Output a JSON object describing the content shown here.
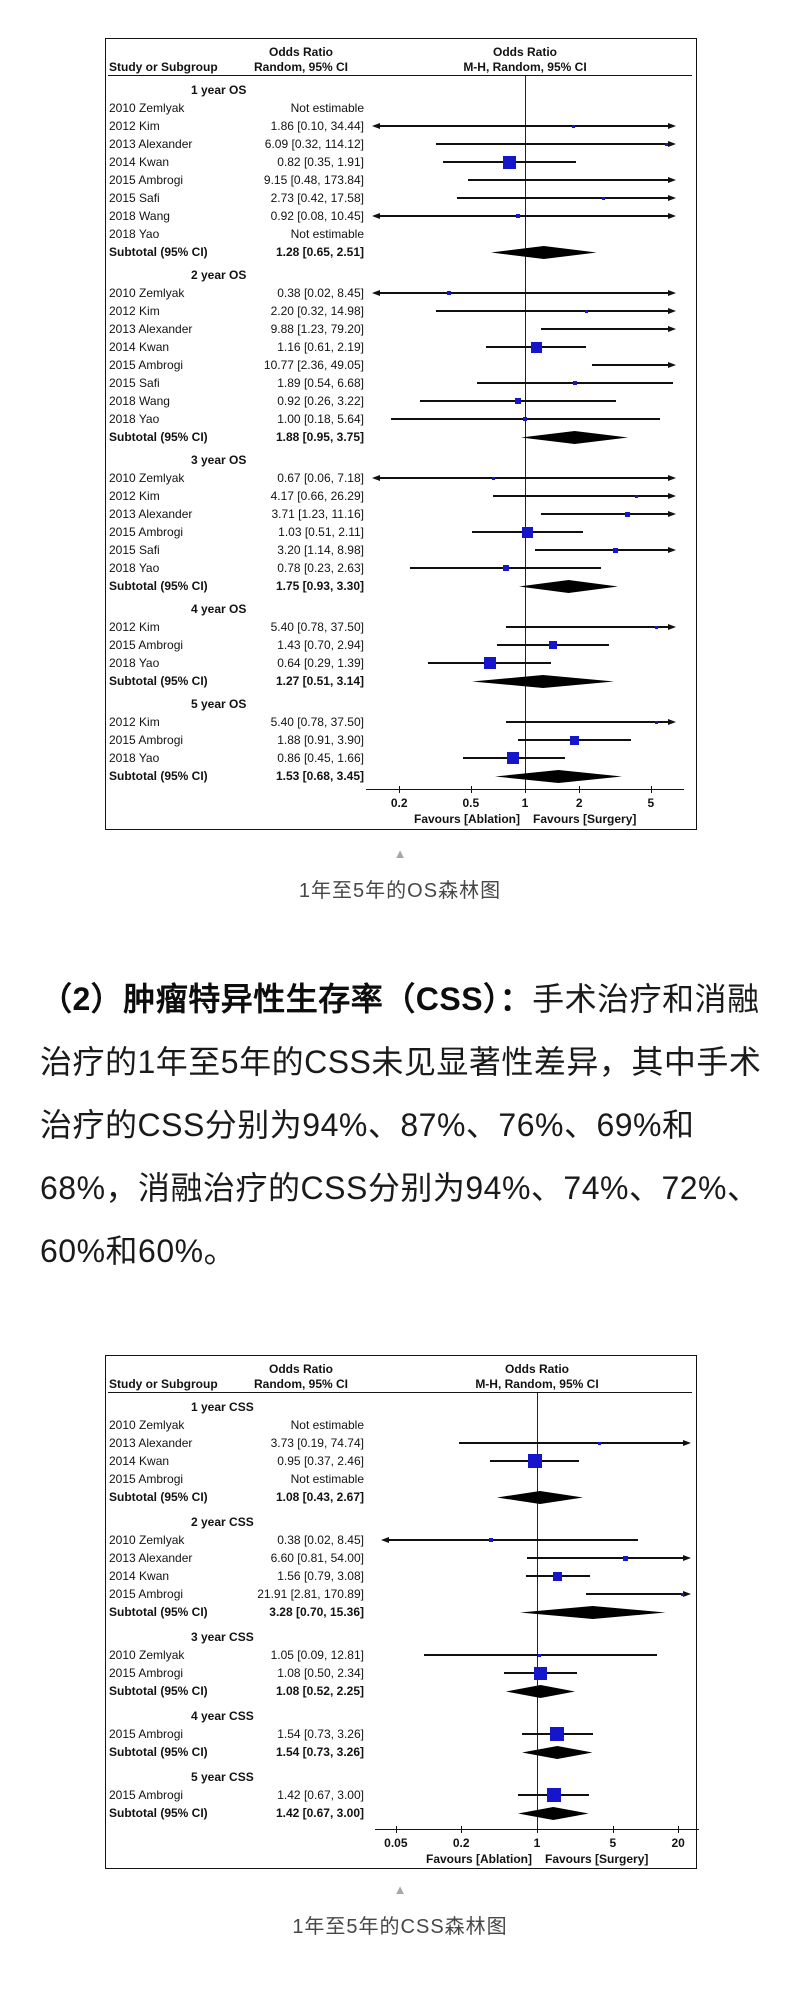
{
  "page": {
    "background": "#ffffff"
  },
  "colors": {
    "marker_blue": "#1515cc",
    "diamond_black": "#000000",
    "line_black": "#101010",
    "caption_gray": "#474747",
    "triangle_gray": "#a8a8a8"
  },
  "figure1": {
    "caption": "1年至5年的OS森林图",
    "triangle_icon": "▲"
  },
  "figure2": {
    "caption": "1年至5年的CSS森林图",
    "triangle_icon": "▲"
  },
  "paragraph": {
    "lead": "（2）肿瘤特异性生存率（CSS）：",
    "body": "手术治疗和消融治疗的1年至5年的CSS未见显著性差异，其中手术治疗的CSS分别为94%、87%、76%、69%和68%，消融治疗的CSS分别为94%、74%、72%、60%和60%。"
  },
  "chart_data": [
    {
      "type": "forest",
      "title": "OS forest plot (1 to 5 year)",
      "scale": "log",
      "col_headers": {
        "study": "Study or Subgroup",
        "or_line1": "Odds Ratio",
        "or_line2": "Random, 95% CI",
        "graph_line1": "Odds Ratio",
        "graph_line2": "M-H, Random, 95% CI"
      },
      "axis_ticks": [
        "0.2",
        "0.5",
        "1",
        "2",
        "5"
      ],
      "favours_left": "Favours [Ablation]",
      "favours_right": "Favours [Surgery]",
      "groups": [
        {
          "label": "1 year OS",
          "rows": [
            {
              "study": "2010 Zemlyak",
              "ci_text": "Not estimable"
            },
            {
              "study": "2012 Kim",
              "ci_text": "1.86 [0.10, 34.44]",
              "or": 1.86,
              "lo": 0.1,
              "hi": 34.44,
              "marker": 3
            },
            {
              "study": "2013 Alexander",
              "ci_text": "6.09 [0.32, 114.12]",
              "or": 6.09,
              "lo": 0.32,
              "hi": 114.12,
              "marker": 3
            },
            {
              "study": "2014 Kwan",
              "ci_text": "0.82 [0.35, 1.91]",
              "or": 0.82,
              "lo": 0.35,
              "hi": 1.91,
              "marker": 13
            },
            {
              "study": "2015 Ambrogi",
              "ci_text": "9.15 [0.48, 173.84]",
              "or": 9.15,
              "lo": 0.48,
              "hi": 173.84,
              "marker": 0
            },
            {
              "study": "2015 Safi",
              "ci_text": "2.73 [0.42, 17.58]",
              "or": 2.73,
              "lo": 0.42,
              "hi": 17.58,
              "marker": 3
            },
            {
              "study": "2018 Wang",
              "ci_text": "0.92 [0.08, 10.45]",
              "or": 0.92,
              "lo": 0.08,
              "hi": 10.45,
              "marker": 4
            },
            {
              "study": "2018 Yao",
              "ci_text": "Not estimable"
            }
          ],
          "subtotal": {
            "label": "Subtotal (95% CI)",
            "ci_text": "1.28 [0.65, 2.51]",
            "or": 1.28,
            "lo": 0.65,
            "hi": 2.51
          }
        },
        {
          "label": "2 year OS",
          "rows": [
            {
              "study": "2010 Zemlyak",
              "ci_text": "0.38 [0.02, 8.45]",
              "or": 0.38,
              "lo": 0.02,
              "hi": 8.45,
              "marker": 4
            },
            {
              "study": "2012 Kim",
              "ci_text": "2.20 [0.32, 14.98]",
              "or": 2.2,
              "lo": 0.32,
              "hi": 14.98,
              "marker": 3
            },
            {
              "study": "2013 Alexander",
              "ci_text": "9.88 [1.23, 79.20]",
              "or": 9.88,
              "lo": 1.23,
              "hi": 79.2,
              "marker": 0
            },
            {
              "study": "2014 Kwan",
              "ci_text": "1.16 [0.61, 2.19]",
              "or": 1.16,
              "lo": 0.61,
              "hi": 2.19,
              "marker": 11
            },
            {
              "study": "2015 Ambrogi",
              "ci_text": "10.77 [2.36, 49.05]",
              "or": 10.77,
              "lo": 2.36,
              "hi": 49.05,
              "marker": 0
            },
            {
              "study": "2015 Safi",
              "ci_text": "1.89 [0.54, 6.68]",
              "or": 1.89,
              "lo": 0.54,
              "hi": 6.68,
              "marker": 4
            },
            {
              "study": "2018 Wang",
              "ci_text": "0.92 [0.26, 3.22]",
              "or": 0.92,
              "lo": 0.26,
              "hi": 3.22,
              "marker": 6
            },
            {
              "study": "2018 Yao",
              "ci_text": "1.00 [0.18, 5.64]",
              "or": 1.0,
              "lo": 0.18,
              "hi": 5.64,
              "marker": 4
            }
          ],
          "subtotal": {
            "label": "Subtotal (95% CI)",
            "ci_text": "1.88 [0.95, 3.75]",
            "or": 1.88,
            "lo": 0.95,
            "hi": 3.75
          }
        },
        {
          "label": "3 year OS",
          "rows": [
            {
              "study": "2010 Zemlyak",
              "ci_text": "0.67 [0.06, 7.18]",
              "or": 0.67,
              "lo": 0.06,
              "hi": 7.18,
              "marker": 3
            },
            {
              "study": "2012 Kim",
              "ci_text": "4.17 [0.66, 26.29]",
              "or": 4.17,
              "lo": 0.66,
              "hi": 26.29,
              "marker": 3
            },
            {
              "study": "2013 Alexander",
              "ci_text": "3.71 [1.23, 11.16]",
              "or": 3.71,
              "lo": 1.23,
              "hi": 11.16,
              "marker": 5
            },
            {
              "study": "2015 Ambrogi",
              "ci_text": "1.03 [0.51, 2.11]",
              "or": 1.03,
              "lo": 0.51,
              "hi": 2.11,
              "marker": 11
            },
            {
              "study": "2015 Safi",
              "ci_text": "3.20 [1.14, 8.98]",
              "or": 3.2,
              "lo": 1.14,
              "hi": 8.98,
              "marker": 5
            },
            {
              "study": "2018 Yao",
              "ci_text": "0.78 [0.23, 2.63]",
              "or": 0.78,
              "lo": 0.23,
              "hi": 2.63,
              "marker": 6
            }
          ],
          "subtotal": {
            "label": "Subtotal (95% CI)",
            "ci_text": "1.75 [0.93, 3.30]",
            "or": 1.75,
            "lo": 0.93,
            "hi": 3.3
          }
        },
        {
          "label": "4 year OS",
          "rows": [
            {
              "study": "2012 Kim",
              "ci_text": "5.40 [0.78, 37.50]",
              "or": 5.4,
              "lo": 0.78,
              "hi": 37.5,
              "marker": 3
            },
            {
              "study": "2015 Ambrogi",
              "ci_text": "1.43 [0.70, 2.94]",
              "or": 1.43,
              "lo": 0.7,
              "hi": 2.94,
              "marker": 8
            },
            {
              "study": "2018 Yao",
              "ci_text": "0.64 [0.29, 1.39]",
              "or": 0.64,
              "lo": 0.29,
              "hi": 1.39,
              "marker": 12
            }
          ],
          "subtotal": {
            "label": "Subtotal (95% CI)",
            "ci_text": "1.27 [0.51, 3.14]",
            "or": 1.27,
            "lo": 0.51,
            "hi": 3.14
          }
        },
        {
          "label": "5 year OS",
          "rows": [
            {
              "study": "2012 Kim",
              "ci_text": "5.40 [0.78, 37.50]",
              "or": 5.4,
              "lo": 0.78,
              "hi": 37.5,
              "marker": 3
            },
            {
              "study": "2015 Ambrogi",
              "ci_text": "1.88 [0.91, 3.90]",
              "or": 1.88,
              "lo": 0.91,
              "hi": 3.9,
              "marker": 9
            },
            {
              "study": "2018 Yao",
              "ci_text": "0.86 [0.45, 1.66]",
              "or": 0.86,
              "lo": 0.45,
              "hi": 1.66,
              "marker": 12
            }
          ],
          "subtotal": {
            "label": "Subtotal (95% CI)",
            "ci_text": "1.53 [0.68, 3.45]",
            "or": 1.53,
            "lo": 0.68,
            "hi": 3.45
          }
        }
      ]
    },
    {
      "type": "forest",
      "title": "CSS forest plot (1 to 5 year)",
      "scale": "log",
      "col_headers": {
        "study": "Study or Subgroup",
        "or_line1": "Odds Ratio",
        "or_line2": "Random, 95% CI",
        "graph_line1": "Odds Ratio",
        "graph_line2": "M-H, Random, 95% CI"
      },
      "axis_ticks": [
        "0.05",
        "0.2",
        "1",
        "5",
        "20"
      ],
      "favours_left": "Favours [Ablation]",
      "favours_right": "Favours [Surgery]",
      "groups": [
        {
          "label": "1 year CSS",
          "rows": [
            {
              "study": "2010 Zemlyak",
              "ci_text": "Not estimable"
            },
            {
              "study": "2013 Alexander",
              "ci_text": "3.73 [0.19, 74.74]",
              "or": 3.73,
              "lo": 0.19,
              "hi": 74.74,
              "marker": 3
            },
            {
              "study": "2014 Kwan",
              "ci_text": "0.95 [0.37, 2.46]",
              "or": 0.95,
              "lo": 0.37,
              "hi": 2.46,
              "marker": 14
            },
            {
              "study": "2015 Ambrogi",
              "ci_text": "Not estimable"
            }
          ],
          "subtotal": {
            "label": "Subtotal (95% CI)",
            "ci_text": "1.08 [0.43, 2.67]",
            "or": 1.08,
            "lo": 0.43,
            "hi": 2.67
          }
        },
        {
          "label": "2 year CSS",
          "rows": [
            {
              "study": "2010 Zemlyak",
              "ci_text": "0.38 [0.02, 8.45]",
              "or": 0.38,
              "lo": 0.02,
              "hi": 8.45,
              "marker": 4
            },
            {
              "study": "2013 Alexander",
              "ci_text": "6.60 [0.81, 54.00]",
              "or": 6.6,
              "lo": 0.81,
              "hi": 54.0,
              "marker": 5
            },
            {
              "study": "2014 Kwan",
              "ci_text": "1.56 [0.79, 3.08]",
              "or": 1.56,
              "lo": 0.79,
              "hi": 3.08,
              "marker": 9
            },
            {
              "study": "2015 Ambrogi",
              "ci_text": "21.91 [2.81, 170.89]",
              "or": 21.91,
              "lo": 2.81,
              "hi": 170.89,
              "marker": 3
            }
          ],
          "subtotal": {
            "label": "Subtotal (95% CI)",
            "ci_text": "3.28 [0.70, 15.36]",
            "or": 3.28,
            "lo": 0.7,
            "hi": 15.36
          }
        },
        {
          "label": "3 year CSS",
          "rows": [
            {
              "study": "2010 Zemlyak",
              "ci_text": "1.05 [0.09, 12.81]",
              "or": 1.05,
              "lo": 0.09,
              "hi": 12.81,
              "marker": 3
            },
            {
              "study": "2015 Ambrogi",
              "ci_text": "1.08 [0.50, 2.34]",
              "or": 1.08,
              "lo": 0.5,
              "hi": 2.34,
              "marker": 13
            }
          ],
          "subtotal": {
            "label": "Subtotal (95% CI)",
            "ci_text": "1.08 [0.52, 2.25]",
            "or": 1.08,
            "lo": 0.52,
            "hi": 2.25
          }
        },
        {
          "label": "4 year CSS",
          "rows": [
            {
              "study": "2015 Ambrogi",
              "ci_text": "1.54 [0.73, 3.26]",
              "or": 1.54,
              "lo": 0.73,
              "hi": 3.26,
              "marker": 14
            }
          ],
          "subtotal": {
            "label": "Subtotal (95% CI)",
            "ci_text": "1.54 [0.73, 3.26]",
            "or": 1.54,
            "lo": 0.73,
            "hi": 3.26
          }
        },
        {
          "label": "5 year CSS",
          "rows": [
            {
              "study": "2015 Ambrogi",
              "ci_text": "1.42 [0.67, 3.00]",
              "or": 1.42,
              "lo": 0.67,
              "hi": 3.0,
              "marker": 14
            }
          ],
          "subtotal": {
            "label": "Subtotal (95% CI)",
            "ci_text": "1.42 [0.67, 3.00]",
            "or": 1.42,
            "lo": 0.67,
            "hi": 3.0
          }
        }
      ]
    }
  ]
}
